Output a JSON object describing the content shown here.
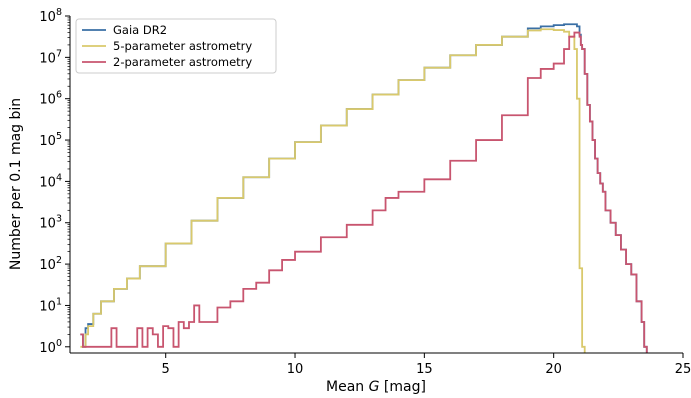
{
  "chart_data": {
    "type": "histogram-step",
    "title": "",
    "xlabel_prefix": "Mean ",
    "xlabel_var": "G",
    "xlabel_suffix": " [mag]",
    "ylabel": "Number per 0.1 mag bin",
    "xlim": [
      1.3,
      25
    ],
    "ylim_log10": [
      -0.15,
      8
    ],
    "yscale": "log",
    "xticks": [
      5,
      10,
      15,
      20,
      25
    ],
    "yticks": [
      {
        "base": "10",
        "exp": "0",
        "value": 1
      },
      {
        "base": "10",
        "exp": "1",
        "value": 10
      },
      {
        "base": "10",
        "exp": "2",
        "value": 100
      },
      {
        "base": "10",
        "exp": "3",
        "value": 1000
      },
      {
        "base": "10",
        "exp": "4",
        "value": 10000
      },
      {
        "base": "10",
        "exp": "5",
        "value": 100000
      },
      {
        "base": "10",
        "exp": "6",
        "value": 1000000
      },
      {
        "base": "10",
        "exp": "7",
        "value": 10000000
      },
      {
        "base": "10",
        "exp": "8",
        "value": 100000000
      }
    ],
    "grid": false,
    "legend_position": "upper-left",
    "series": [
      {
        "name": "Gaia DR2",
        "color": "#3a6fa5",
        "bin_width": 0.1,
        "points": [
          [
            1.7,
            0.3
          ],
          [
            1.8,
            0.0
          ],
          [
            1.9,
            0.45
          ],
          [
            2.0,
            0.55
          ],
          [
            2.2,
            0.8
          ],
          [
            2.5,
            1.1
          ],
          [
            3.0,
            1.4
          ],
          [
            3.5,
            1.65
          ],
          [
            4.0,
            1.95
          ],
          [
            5.0,
            2.5
          ],
          [
            6.0,
            3.05
          ],
          [
            7.0,
            3.6
          ],
          [
            8.0,
            4.1
          ],
          [
            9.0,
            4.55
          ],
          [
            10.0,
            4.95
          ],
          [
            11.0,
            5.35
          ],
          [
            12.0,
            5.75
          ],
          [
            13.0,
            6.1
          ],
          [
            14.0,
            6.45
          ],
          [
            15.0,
            6.75
          ],
          [
            16.0,
            7.05
          ],
          [
            17.0,
            7.3
          ],
          [
            18.0,
            7.5
          ],
          [
            19.0,
            7.7
          ],
          [
            19.5,
            7.75
          ],
          [
            20.0,
            7.78
          ],
          [
            20.4,
            7.8
          ],
          [
            20.7,
            7.8
          ],
          [
            20.9,
            7.75
          ],
          [
            21.0,
            7.55
          ],
          [
            21.05,
            7.3
          ],
          [
            21.1,
            7.2
          ],
          [
            21.2,
            6.6
          ],
          [
            21.3,
            5.85
          ],
          [
            21.4,
            5.45
          ],
          [
            21.5,
            5.0
          ],
          [
            21.6,
            4.55
          ],
          [
            21.7,
            4.2
          ],
          [
            21.8,
            3.95
          ],
          [
            21.9,
            3.75
          ],
          [
            22.0,
            3.3
          ],
          [
            22.2,
            3.0
          ],
          [
            22.4,
            2.7
          ],
          [
            22.6,
            2.35
          ],
          [
            22.8,
            2.0
          ],
          [
            23.0,
            1.75
          ],
          [
            23.2,
            1.1
          ],
          [
            23.4,
            0.6
          ],
          [
            23.5,
            0.0
          ]
        ]
      },
      {
        "name": "5-parameter astrometry",
        "color": "#d9c96c",
        "bin_width": 0.1,
        "points": [
          [
            1.7,
            0.0
          ],
          [
            1.8,
            0.0
          ],
          [
            1.9,
            0.3
          ],
          [
            2.0,
            0.5
          ],
          [
            2.2,
            0.8
          ],
          [
            2.5,
            1.1
          ],
          [
            3.0,
            1.4
          ],
          [
            3.5,
            1.65
          ],
          [
            4.0,
            1.95
          ],
          [
            5.0,
            2.5
          ],
          [
            6.0,
            3.05
          ],
          [
            7.0,
            3.6
          ],
          [
            8.0,
            4.1
          ],
          [
            9.0,
            4.55
          ],
          [
            10.0,
            4.95
          ],
          [
            11.0,
            5.35
          ],
          [
            12.0,
            5.75
          ],
          [
            13.0,
            6.1
          ],
          [
            14.0,
            6.45
          ],
          [
            15.0,
            6.75
          ],
          [
            16.0,
            7.05
          ],
          [
            17.0,
            7.3
          ],
          [
            18.0,
            7.5
          ],
          [
            19.0,
            7.65
          ],
          [
            19.5,
            7.68
          ],
          [
            20.0,
            7.66
          ],
          [
            20.4,
            7.62
          ],
          [
            20.6,
            7.5
          ],
          [
            20.8,
            7.2
          ],
          [
            20.9,
            6.0
          ],
          [
            21.0,
            1.9
          ],
          [
            21.1,
            0.0
          ]
        ]
      },
      {
        "name": "2-parameter astrometry",
        "color": "#c8556f",
        "bin_width": 0.1,
        "points": [
          [
            1.7,
            0.3
          ],
          [
            1.8,
            0.0
          ],
          [
            2.0,
            0.0
          ],
          [
            2.5,
            0.0
          ],
          [
            2.9,
            0.45
          ],
          [
            3.1,
            0.0
          ],
          [
            3.5,
            0.0
          ],
          [
            3.9,
            0.45
          ],
          [
            4.1,
            0.0
          ],
          [
            4.3,
            0.45
          ],
          [
            4.5,
            0.3
          ],
          [
            4.7,
            0.0
          ],
          [
            4.9,
            0.5
          ],
          [
            5.1,
            0.45
          ],
          [
            5.3,
            0.0
          ],
          [
            5.5,
            0.6
          ],
          [
            5.7,
            0.45
          ],
          [
            5.9,
            0.6
          ],
          [
            6.1,
            1.0
          ],
          [
            6.3,
            0.6
          ],
          [
            6.5,
            0.6
          ],
          [
            7.0,
            0.95
          ],
          [
            7.5,
            1.1
          ],
          [
            8.0,
            1.4
          ],
          [
            8.5,
            1.55
          ],
          [
            9.0,
            1.85
          ],
          [
            9.5,
            2.1
          ],
          [
            10.0,
            2.3
          ],
          [
            11.0,
            2.65
          ],
          [
            12.0,
            2.95
          ],
          [
            13.0,
            3.3
          ],
          [
            13.5,
            3.6
          ],
          [
            14.0,
            3.75
          ],
          [
            15.0,
            4.05
          ],
          [
            16.0,
            4.5
          ],
          [
            17.0,
            5.0
          ],
          [
            18.0,
            5.6
          ],
          [
            19.0,
            6.5
          ],
          [
            19.5,
            6.72
          ],
          [
            20.0,
            6.85
          ],
          [
            20.4,
            7.2
          ],
          [
            20.6,
            7.5
          ],
          [
            20.8,
            7.6
          ],
          [
            21.0,
            7.5
          ],
          [
            21.05,
            7.3
          ],
          [
            21.1,
            7.2
          ],
          [
            21.2,
            6.6
          ],
          [
            21.3,
            5.85
          ],
          [
            21.4,
            5.45
          ],
          [
            21.5,
            5.0
          ],
          [
            21.6,
            4.55
          ],
          [
            21.7,
            4.2
          ],
          [
            21.8,
            3.95
          ],
          [
            21.9,
            3.75
          ],
          [
            22.0,
            3.3
          ],
          [
            22.2,
            3.0
          ],
          [
            22.4,
            2.7
          ],
          [
            22.6,
            2.35
          ],
          [
            22.8,
            2.0
          ],
          [
            23.0,
            1.75
          ],
          [
            23.2,
            1.1
          ],
          [
            23.4,
            0.6
          ],
          [
            23.5,
            0.0
          ]
        ]
      }
    ]
  }
}
